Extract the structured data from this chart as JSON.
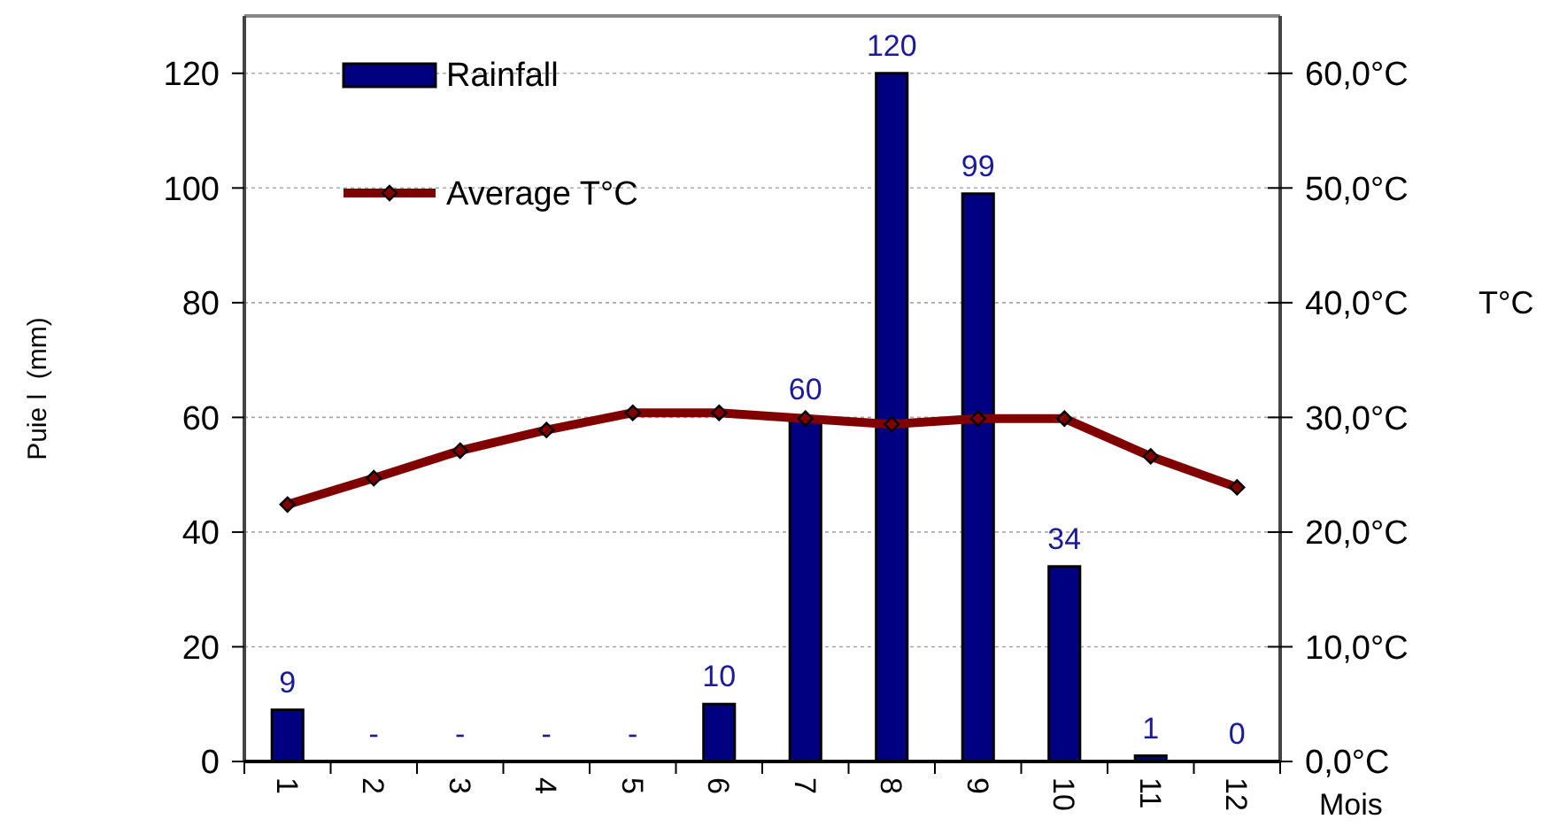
{
  "chart_data": {
    "type": "bar",
    "ylabel": "Puie l  (mm)",
    "y2label": "T°C",
    "xlabel": "Mois",
    "categories": [
      "1",
      "2",
      "3",
      "4",
      "5",
      "6",
      "7",
      "8",
      "9",
      "10",
      "11",
      "12"
    ],
    "series": [
      {
        "name": "Rainfall",
        "color": "#000080",
        "values": [
          9,
          0,
          0,
          0,
          0,
          10,
          60,
          120,
          99,
          34,
          1,
          0
        ],
        "value_labels": [
          "9",
          "-",
          "-",
          "-",
          "-",
          "10",
          "60",
          "120",
          "99",
          "34",
          "1",
          "0"
        ]
      },
      {
        "name": "Average T°C",
        "type": "line",
        "axis": "y2",
        "color": "#800000",
        "marker": "diamond",
        "values": [
          22.4,
          24.7,
          27.1,
          28.9,
          30.4,
          30.4,
          29.9,
          29.4,
          29.9,
          29.9,
          26.6,
          23.9
        ]
      }
    ],
    "ylim": [
      0,
      130
    ],
    "yticks": [
      0,
      20,
      40,
      60,
      80,
      100,
      120
    ],
    "y2lim": [
      0,
      65
    ],
    "y2ticks": [
      {
        "value": 0,
        "label": "0,0°C"
      },
      {
        "value": 10,
        "label": "10,0°C"
      },
      {
        "value": 20,
        "label": "20,0°C"
      },
      {
        "value": 30,
        "label": "30,0°C"
      },
      {
        "value": 40,
        "label": "40,0°C"
      },
      {
        "value": 50,
        "label": "50,0°C"
      },
      {
        "value": 60,
        "label": "60,0°C"
      }
    ],
    "grid": "y",
    "legend": "top left"
  }
}
